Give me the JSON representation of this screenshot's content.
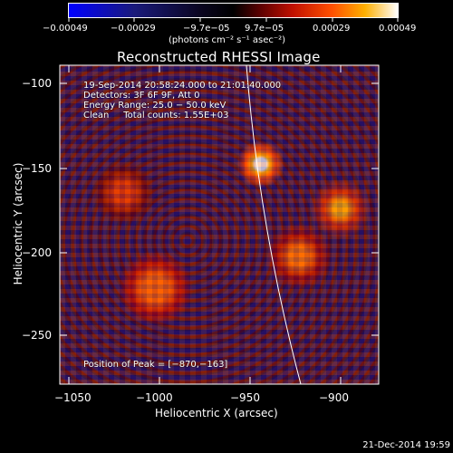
{
  "colorbar": {
    "colormap": [
      "#0000ff",
      "#1a1060",
      "#000000",
      "#500000",
      "#d01800",
      "#ff9a00",
      "#ffffff"
    ],
    "ticks": [
      "−0.00049",
      "−0.00029",
      "−9.7e−05",
      "9.7e−05",
      "0.00029",
      "0.00049"
    ],
    "units": "(photons cm⁻² s⁻¹ asec⁻²)"
  },
  "plot": {
    "title": "Reconstructed RHESSI Image",
    "xlabel": "Heliocentric X (arcsec)",
    "ylabel": "Heliocentric Y (arcsec)",
    "xticks": [
      "−1050",
      "−1000",
      "−950",
      "−900"
    ],
    "yticks": [
      "−100",
      "−150",
      "−200",
      "−250"
    ]
  },
  "annotations": {
    "time": "19-Sep-2014 20:58:24.000 to 21:01:40.000",
    "detectors": "Detectors: 3F 6F 9F, Att 0",
    "energy": "Energy Range: 25.0 − 50.0 keV",
    "clean": "Clean     Total counts: 1.55E+03",
    "peak": "Position of Peak = [−870,−163]"
  },
  "footer": {
    "timestamp": "21-Dec-2014 19:59"
  }
}
